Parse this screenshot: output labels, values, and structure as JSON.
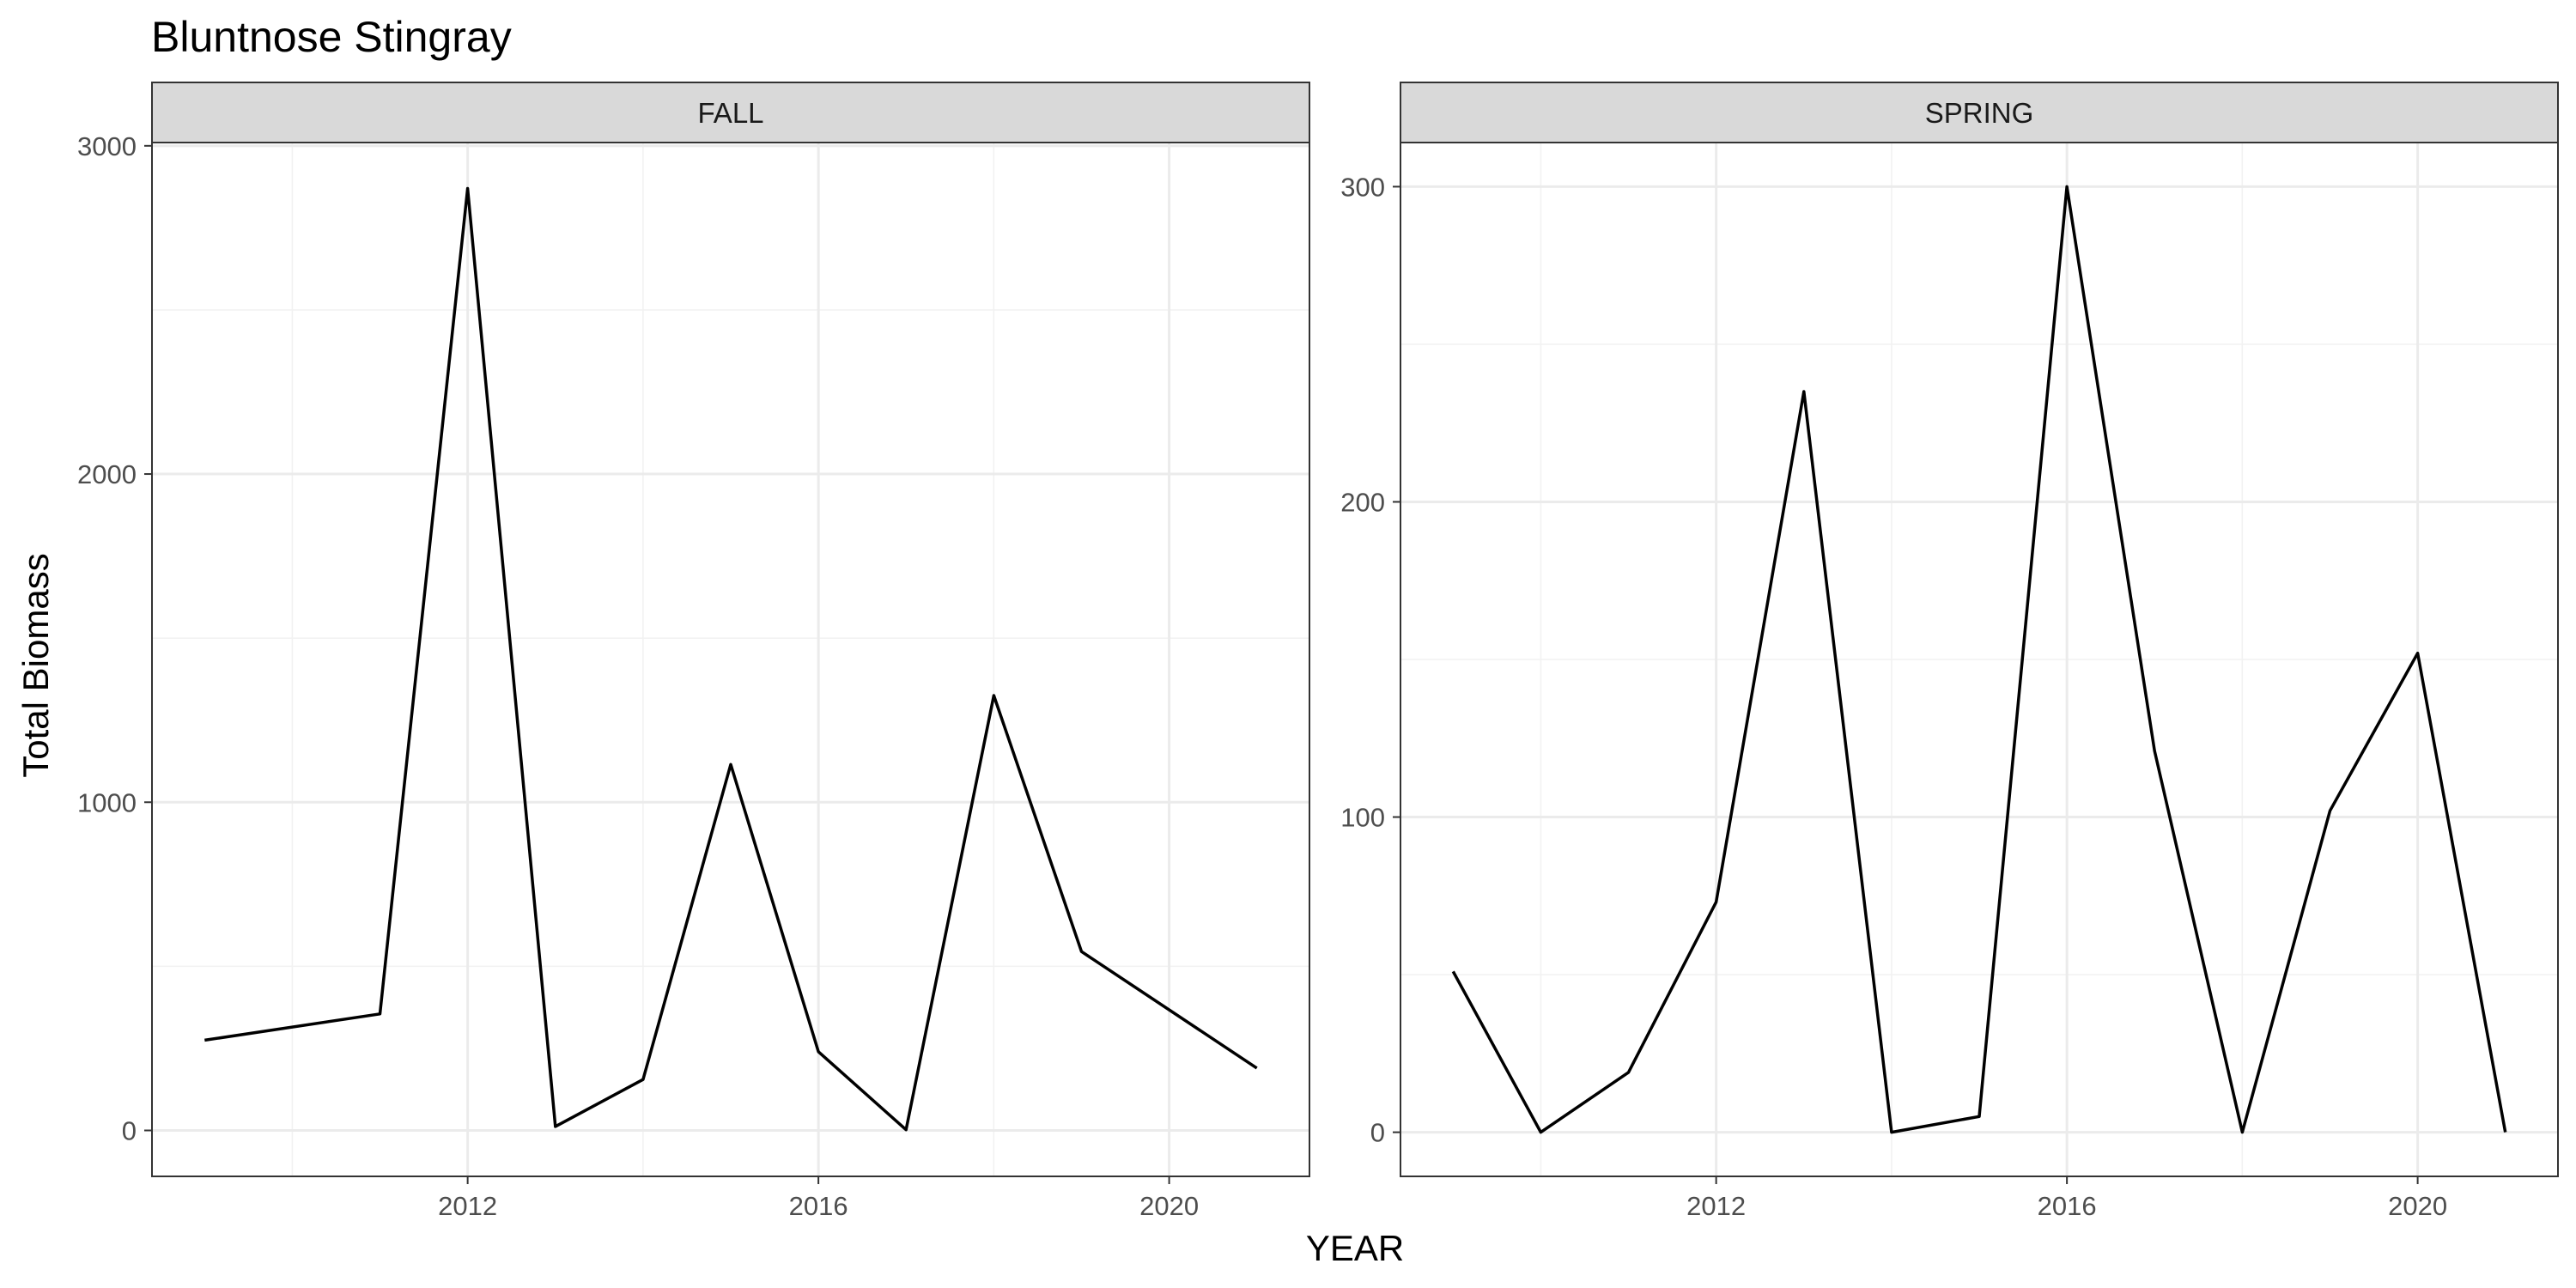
{
  "chart_data": {
    "type": "line",
    "title": "Bluntnose Stingray",
    "xlabel": "YEAR",
    "ylabel": "Total Biomass",
    "grid": true,
    "legend": "none",
    "line_color": "#000000",
    "panels": [
      {
        "name": "FALL",
        "x": [
          2009,
          2011,
          2012,
          2013,
          2014,
          2015,
          2016,
          2017,
          2018,
          2019,
          2021
        ],
        "y": [
          275,
          355,
          2870,
          12,
          155,
          1115,
          240,
          2,
          1325,
          545,
          190
        ],
        "xlim": [
          2008.4,
          2021.6
        ],
        "ylim": [
          -140,
          3010
        ],
        "xticks": [
          2012,
          2016,
          2020
        ],
        "yticks": [
          0,
          1000,
          2000,
          3000
        ]
      },
      {
        "name": "SPRING",
        "x": [
          2009,
          2010,
          2011,
          2012,
          2013,
          2014,
          2015,
          2016,
          2017,
          2018,
          2019,
          2020,
          2021
        ],
        "y": [
          51,
          0,
          19,
          73,
          235,
          0,
          5,
          300,
          121,
          0,
          102,
          152,
          0
        ],
        "xlim": [
          2008.4,
          2021.6
        ],
        "ylim": [
          -14,
          314
        ],
        "xticks": [
          2012,
          2016,
          2020
        ],
        "yticks": [
          0,
          100,
          200,
          300
        ]
      }
    ]
  }
}
